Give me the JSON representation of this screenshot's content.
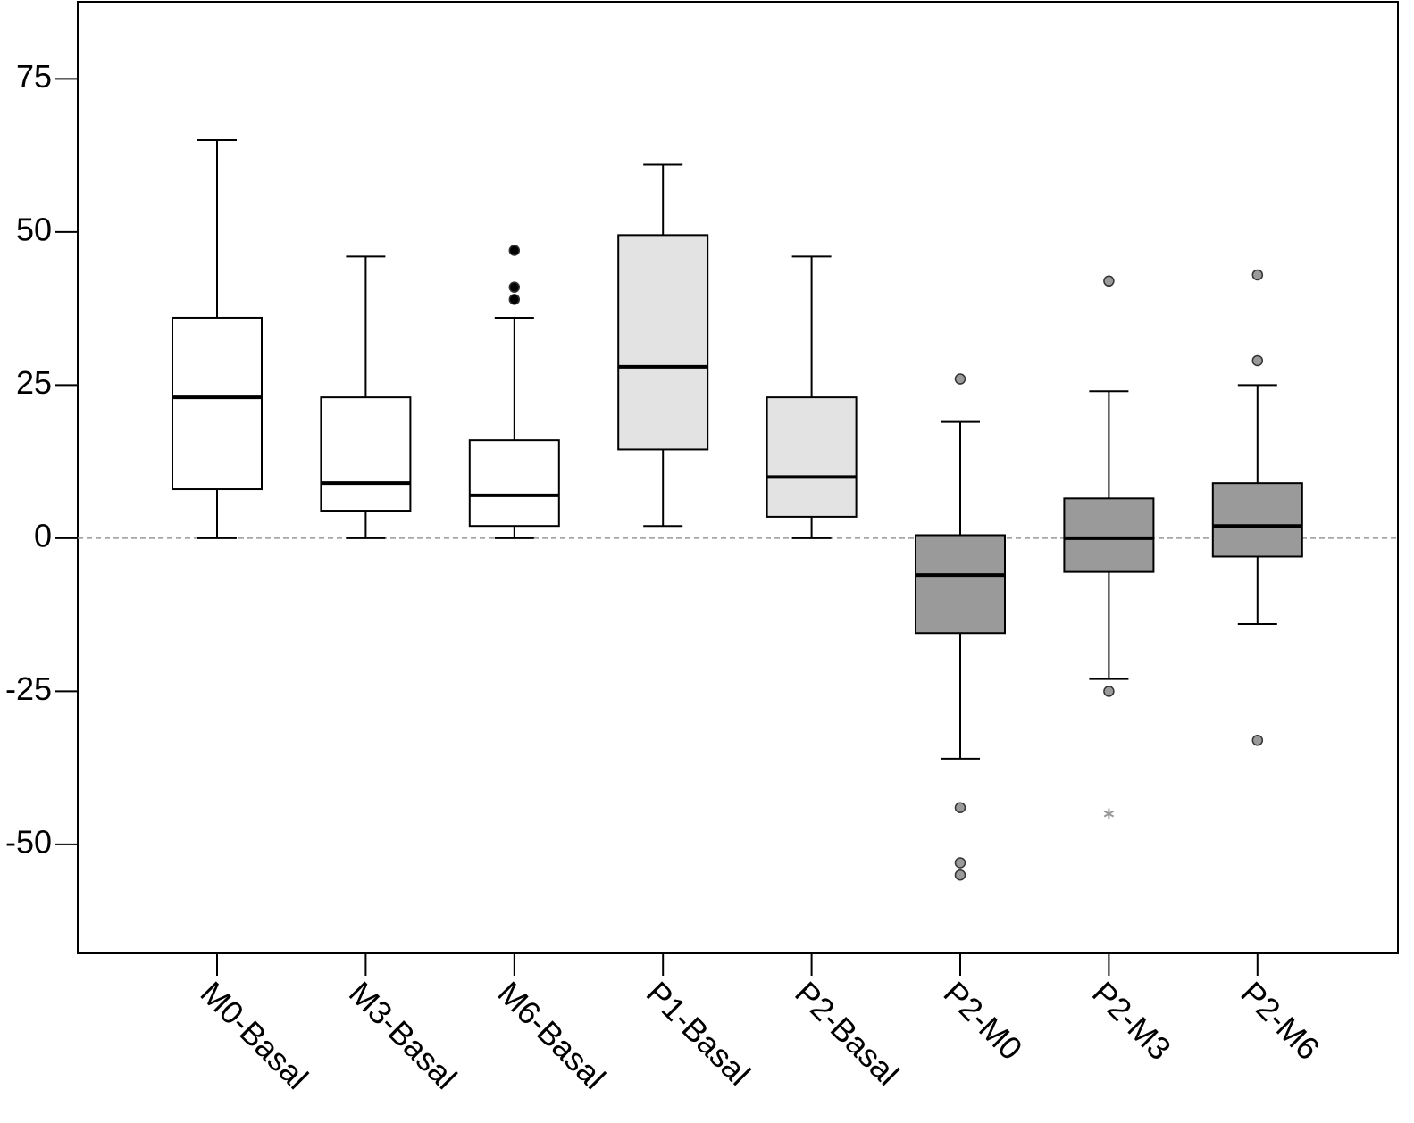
{
  "chart_data": {
    "type": "box",
    "categories": [
      "M0-Basal",
      "M3-Basal",
      "M6-Basal",
      "P1-Basal",
      "P2-Basal",
      "P2-M0",
      "P2-M3",
      "P2-M6"
    ],
    "boxes": [
      {
        "whisker_low": 0,
        "q1": 8,
        "median": 23,
        "q3": 36,
        "whisker_high": 65,
        "outliers": [],
        "extremes": [],
        "fill": "#ffffff",
        "outlier_color": "#000000"
      },
      {
        "whisker_low": 0,
        "q1": 4.5,
        "median": 9,
        "q3": 23,
        "whisker_high": 46,
        "outliers": [],
        "extremes": [],
        "fill": "#ffffff",
        "outlier_color": "#000000"
      },
      {
        "whisker_low": 0,
        "q1": 2,
        "median": 7,
        "q3": 16,
        "whisker_high": 36,
        "outliers": [
          47,
          41,
          39
        ],
        "extremes": [],
        "fill": "#ffffff",
        "outlier_color": "#000000"
      },
      {
        "whisker_low": 2,
        "q1": 14.5,
        "median": 28,
        "q3": 49.5,
        "whisker_high": 61,
        "outliers": [],
        "extremes": [],
        "fill": "#e3e3e3",
        "outlier_color": "#000000"
      },
      {
        "whisker_low": 0,
        "q1": 3.5,
        "median": 10,
        "q3": 23,
        "whisker_high": 46,
        "outliers": [],
        "extremes": [],
        "fill": "#e3e3e3",
        "outlier_color": "#000000"
      },
      {
        "whisker_low": -36,
        "q1": -15.5,
        "median": -6,
        "q3": 0.5,
        "whisker_high": 19,
        "outliers": [
          26,
          -44,
          -53,
          -55
        ],
        "extremes": [],
        "fill": "#9a9a9a",
        "outlier_color": "#9a9a9a"
      },
      {
        "whisker_low": -23,
        "q1": -5.5,
        "median": 0,
        "q3": 6.5,
        "whisker_high": 24,
        "outliers": [
          42,
          -25
        ],
        "extremes": [
          -45
        ],
        "fill": "#9a9a9a",
        "outlier_color": "#9a9a9a"
      },
      {
        "whisker_low": -14,
        "q1": -3,
        "median": 2,
        "q3": 9,
        "whisker_high": 25,
        "outliers": [
          43,
          29,
          -33
        ],
        "extremes": [],
        "fill": "#9a9a9a",
        "outlier_color": "#9a9a9a"
      }
    ],
    "ylim": [
      -67.8,
      87.6
    ],
    "yticks": [
      -50,
      -25,
      0,
      25,
      50,
      75
    ],
    "reference_line": 0
  }
}
